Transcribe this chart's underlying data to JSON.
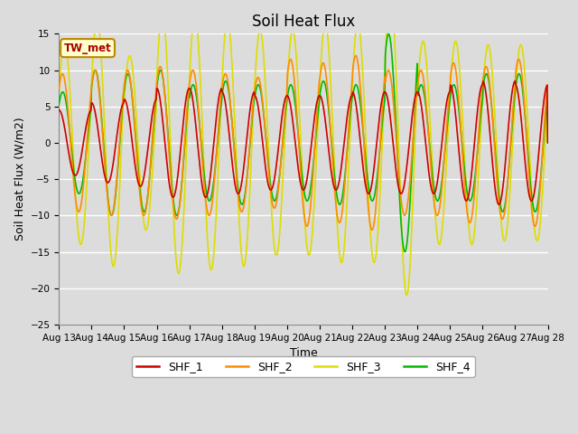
{
  "title": "Soil Heat Flux",
  "xlabel": "Time",
  "ylabel": "Soil Heat Flux (W/m2)",
  "ylim": [
    -25,
    15
  ],
  "yticks": [
    -25,
    -20,
    -15,
    -10,
    -5,
    0,
    5,
    10,
    15
  ],
  "x_tick_labels": [
    "Aug 13",
    "Aug 14",
    "Aug 15",
    "Aug 16",
    "Aug 17",
    "Aug 18",
    "Aug 19",
    "Aug 20",
    "Aug 21",
    "Aug 22",
    "Aug 23",
    "Aug 24",
    "Aug 25",
    "Aug 26",
    "Aug 27",
    "Aug 28"
  ],
  "colors": {
    "SHF_1": "#cc0000",
    "SHF_2": "#ff8c00",
    "SHF_3": "#dddd00",
    "SHF_4": "#00bb00"
  },
  "annotation_text": "TW_met",
  "annotation_color": "#aa0000",
  "annotation_bg": "#ffffcc",
  "annotation_border": "#bb8800",
  "fig_bg_color": "#dcdcdc",
  "plot_bg_color": "#dcdcdc",
  "grid_color": "white",
  "title_fontsize": 12,
  "axis_label_fontsize": 9,
  "tick_fontsize": 7.5,
  "linewidth": 1.2,
  "n_days": 15,
  "amp1_per_day": [
    4.5,
    5.5,
    6.0,
    7.5,
    7.5,
    7.0,
    6.5,
    6.5,
    6.5,
    7.0,
    7.0,
    7.0,
    8.0,
    8.5,
    8.0
  ],
  "amp2_per_day": [
    9.5,
    10.0,
    10.0,
    10.5,
    10.0,
    9.5,
    9.0,
    11.5,
    11.0,
    12.0,
    10.0,
    10.0,
    11.0,
    10.5,
    11.5
  ],
  "amp3_per_day": [
    14.0,
    17.0,
    12.0,
    18.0,
    17.5,
    17.0,
    15.5,
    15.5,
    16.5,
    16.5,
    21.0,
    14.0,
    14.0,
    13.5,
    13.5
  ],
  "amp4_per_day": [
    7.0,
    10.0,
    9.5,
    10.0,
    8.0,
    8.5,
    8.0,
    8.0,
    8.5,
    8.0,
    15.0,
    8.0,
    8.0,
    9.5,
    9.5
  ],
  "phase1": 1.57,
  "phase2": 0.9,
  "phase3": 0.5,
  "phase4": 0.85
}
